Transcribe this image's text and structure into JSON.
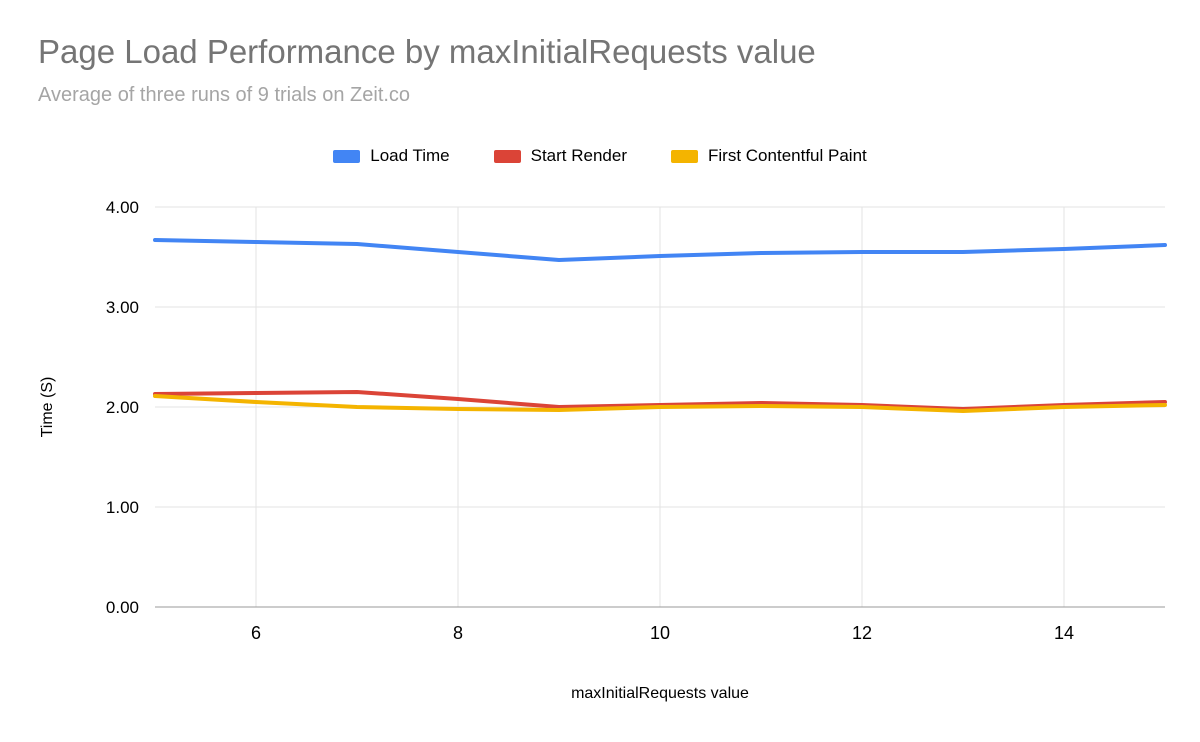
{
  "styles": {
    "title_color": "#757575",
    "subtitle_color": "#a5a5a5",
    "background": "#ffffff"
  },
  "chart_data": {
    "type": "line",
    "title": "Page Load Performance by maxInitialRequests value",
    "subtitle": "Average of three runs of 9 trials on Zeit.co",
    "xlabel": "maxInitialRequests value",
    "ylabel": "Time (S)",
    "xlim": [
      5,
      15
    ],
    "ylim": [
      0,
      4
    ],
    "grid": true,
    "legend_position": "top",
    "x": [
      5,
      6,
      7,
      8,
      9,
      10,
      11,
      12,
      13,
      14,
      15
    ],
    "x_tick_values": [
      6,
      8,
      10,
      12,
      14
    ],
    "x_tick_labels": [
      "6",
      "8",
      "10",
      "12",
      "14"
    ],
    "y_tick_values": [
      0,
      1,
      2,
      3,
      4
    ],
    "y_tick_labels": [
      "0.00",
      "1.00",
      "2.00",
      "3.00",
      "4.00"
    ],
    "gridline_color": "#e3e3e3",
    "baseline_color": "#999999",
    "axis_text_color": "#000000",
    "series": [
      {
        "name": "Load Time",
        "color": "#4285F4",
        "values": [
          3.67,
          3.65,
          3.63,
          3.55,
          3.47,
          3.51,
          3.54,
          3.55,
          3.55,
          3.58,
          3.62
        ]
      },
      {
        "name": "Start Render",
        "color": "#DB4437",
        "values": [
          2.13,
          2.14,
          2.15,
          2.08,
          2.0,
          2.02,
          2.04,
          2.02,
          1.98,
          2.02,
          2.05
        ]
      },
      {
        "name": "First Contentful Paint",
        "color": "#F4B400",
        "values": [
          2.11,
          2.05,
          2.0,
          1.98,
          1.97,
          2.0,
          2.01,
          2.0,
          1.96,
          2.0,
          2.02
        ]
      }
    ]
  }
}
